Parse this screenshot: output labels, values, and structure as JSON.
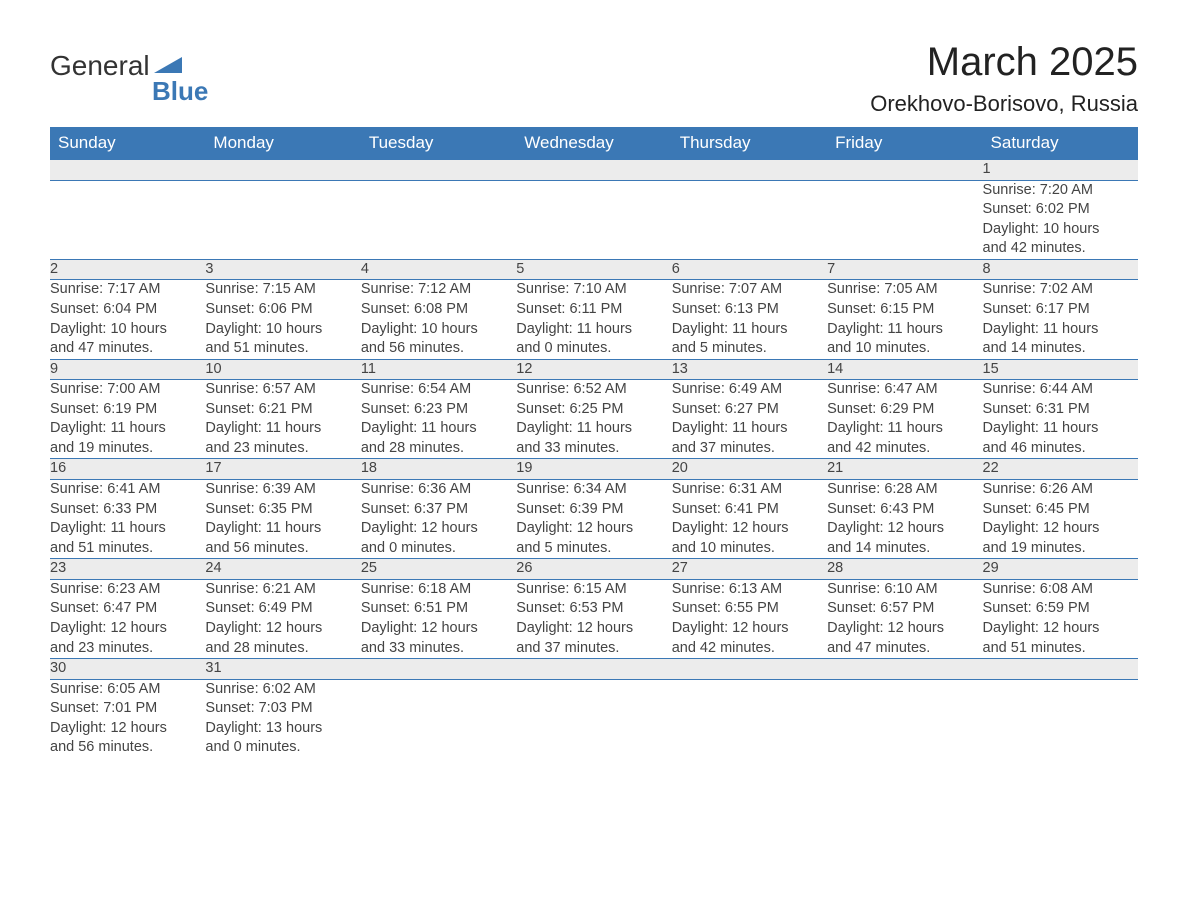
{
  "logo": {
    "word1": "General",
    "word2": "Blue",
    "triangle_color": "#3b78b5"
  },
  "title": "March 2025",
  "location": "Orekhovo-Borisovo, Russia",
  "header_bg": "#3b78b5",
  "header_fg": "#ffffff",
  "daynum_bg": "#ececec",
  "row_border": "#3b78b5",
  "text_color": "#444444",
  "cell_fontsize": 14.5,
  "days": [
    "Sunday",
    "Monday",
    "Tuesday",
    "Wednesday",
    "Thursday",
    "Friday",
    "Saturday"
  ],
  "weeks": [
    [
      null,
      null,
      null,
      null,
      null,
      null,
      {
        "n": "1",
        "sr": "Sunrise: 7:20 AM",
        "ss": "Sunset: 6:02 PM",
        "d1": "Daylight: 10 hours",
        "d2": "and 42 minutes."
      }
    ],
    [
      {
        "n": "2",
        "sr": "Sunrise: 7:17 AM",
        "ss": "Sunset: 6:04 PM",
        "d1": "Daylight: 10 hours",
        "d2": "and 47 minutes."
      },
      {
        "n": "3",
        "sr": "Sunrise: 7:15 AM",
        "ss": "Sunset: 6:06 PM",
        "d1": "Daylight: 10 hours",
        "d2": "and 51 minutes."
      },
      {
        "n": "4",
        "sr": "Sunrise: 7:12 AM",
        "ss": "Sunset: 6:08 PM",
        "d1": "Daylight: 10 hours",
        "d2": "and 56 minutes."
      },
      {
        "n": "5",
        "sr": "Sunrise: 7:10 AM",
        "ss": "Sunset: 6:11 PM",
        "d1": "Daylight: 11 hours",
        "d2": "and 0 minutes."
      },
      {
        "n": "6",
        "sr": "Sunrise: 7:07 AM",
        "ss": "Sunset: 6:13 PM",
        "d1": "Daylight: 11 hours",
        "d2": "and 5 minutes."
      },
      {
        "n": "7",
        "sr": "Sunrise: 7:05 AM",
        "ss": "Sunset: 6:15 PM",
        "d1": "Daylight: 11 hours",
        "d2": "and 10 minutes."
      },
      {
        "n": "8",
        "sr": "Sunrise: 7:02 AM",
        "ss": "Sunset: 6:17 PM",
        "d1": "Daylight: 11 hours",
        "d2": "and 14 minutes."
      }
    ],
    [
      {
        "n": "9",
        "sr": "Sunrise: 7:00 AM",
        "ss": "Sunset: 6:19 PM",
        "d1": "Daylight: 11 hours",
        "d2": "and 19 minutes."
      },
      {
        "n": "10",
        "sr": "Sunrise: 6:57 AM",
        "ss": "Sunset: 6:21 PM",
        "d1": "Daylight: 11 hours",
        "d2": "and 23 minutes."
      },
      {
        "n": "11",
        "sr": "Sunrise: 6:54 AM",
        "ss": "Sunset: 6:23 PM",
        "d1": "Daylight: 11 hours",
        "d2": "and 28 minutes."
      },
      {
        "n": "12",
        "sr": "Sunrise: 6:52 AM",
        "ss": "Sunset: 6:25 PM",
        "d1": "Daylight: 11 hours",
        "d2": "and 33 minutes."
      },
      {
        "n": "13",
        "sr": "Sunrise: 6:49 AM",
        "ss": "Sunset: 6:27 PM",
        "d1": "Daylight: 11 hours",
        "d2": "and 37 minutes."
      },
      {
        "n": "14",
        "sr": "Sunrise: 6:47 AM",
        "ss": "Sunset: 6:29 PM",
        "d1": "Daylight: 11 hours",
        "d2": "and 42 minutes."
      },
      {
        "n": "15",
        "sr": "Sunrise: 6:44 AM",
        "ss": "Sunset: 6:31 PM",
        "d1": "Daylight: 11 hours",
        "d2": "and 46 minutes."
      }
    ],
    [
      {
        "n": "16",
        "sr": "Sunrise: 6:41 AM",
        "ss": "Sunset: 6:33 PM",
        "d1": "Daylight: 11 hours",
        "d2": "and 51 minutes."
      },
      {
        "n": "17",
        "sr": "Sunrise: 6:39 AM",
        "ss": "Sunset: 6:35 PM",
        "d1": "Daylight: 11 hours",
        "d2": "and 56 minutes."
      },
      {
        "n": "18",
        "sr": "Sunrise: 6:36 AM",
        "ss": "Sunset: 6:37 PM",
        "d1": "Daylight: 12 hours",
        "d2": "and 0 minutes."
      },
      {
        "n": "19",
        "sr": "Sunrise: 6:34 AM",
        "ss": "Sunset: 6:39 PM",
        "d1": "Daylight: 12 hours",
        "d2": "and 5 minutes."
      },
      {
        "n": "20",
        "sr": "Sunrise: 6:31 AM",
        "ss": "Sunset: 6:41 PM",
        "d1": "Daylight: 12 hours",
        "d2": "and 10 minutes."
      },
      {
        "n": "21",
        "sr": "Sunrise: 6:28 AM",
        "ss": "Sunset: 6:43 PM",
        "d1": "Daylight: 12 hours",
        "d2": "and 14 minutes."
      },
      {
        "n": "22",
        "sr": "Sunrise: 6:26 AM",
        "ss": "Sunset: 6:45 PM",
        "d1": "Daylight: 12 hours",
        "d2": "and 19 minutes."
      }
    ],
    [
      {
        "n": "23",
        "sr": "Sunrise: 6:23 AM",
        "ss": "Sunset: 6:47 PM",
        "d1": "Daylight: 12 hours",
        "d2": "and 23 minutes."
      },
      {
        "n": "24",
        "sr": "Sunrise: 6:21 AM",
        "ss": "Sunset: 6:49 PM",
        "d1": "Daylight: 12 hours",
        "d2": "and 28 minutes."
      },
      {
        "n": "25",
        "sr": "Sunrise: 6:18 AM",
        "ss": "Sunset: 6:51 PM",
        "d1": "Daylight: 12 hours",
        "d2": "and 33 minutes."
      },
      {
        "n": "26",
        "sr": "Sunrise: 6:15 AM",
        "ss": "Sunset: 6:53 PM",
        "d1": "Daylight: 12 hours",
        "d2": "and 37 minutes."
      },
      {
        "n": "27",
        "sr": "Sunrise: 6:13 AM",
        "ss": "Sunset: 6:55 PM",
        "d1": "Daylight: 12 hours",
        "d2": "and 42 minutes."
      },
      {
        "n": "28",
        "sr": "Sunrise: 6:10 AM",
        "ss": "Sunset: 6:57 PM",
        "d1": "Daylight: 12 hours",
        "d2": "and 47 minutes."
      },
      {
        "n": "29",
        "sr": "Sunrise: 6:08 AM",
        "ss": "Sunset: 6:59 PM",
        "d1": "Daylight: 12 hours",
        "d2": "and 51 minutes."
      }
    ],
    [
      {
        "n": "30",
        "sr": "Sunrise: 6:05 AM",
        "ss": "Sunset: 7:01 PM",
        "d1": "Daylight: 12 hours",
        "d2": "and 56 minutes."
      },
      {
        "n": "31",
        "sr": "Sunrise: 6:02 AM",
        "ss": "Sunset: 7:03 PM",
        "d1": "Daylight: 13 hours",
        "d2": "and 0 minutes."
      },
      null,
      null,
      null,
      null,
      null
    ]
  ]
}
